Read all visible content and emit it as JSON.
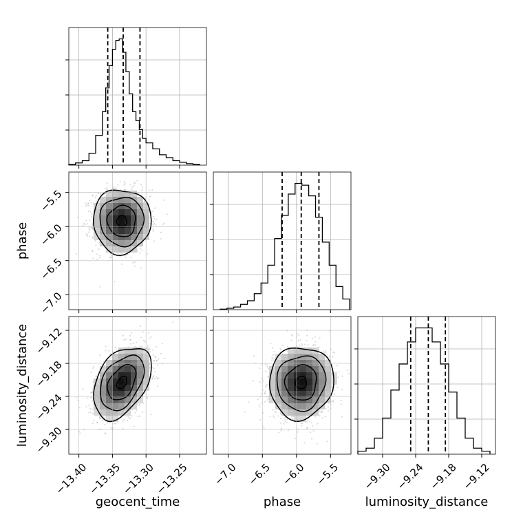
{
  "chart_data": {
    "type": "corner",
    "parameters": [
      {
        "name": "geocent_time",
        "label": "geocent_time",
        "range": [
          -13.415,
          -13.21
        ],
        "ticks": [
          -13.4,
          -13.35,
          -13.3,
          -13.25
        ],
        "tick_labels": [
          "−13.40",
          "−13.35",
          "−13.30",
          "−13.25"
        ],
        "quantiles": [
          -13.357,
          -13.334,
          -13.309
        ]
      },
      {
        "name": "phase",
        "label": "phase",
        "range": [
          -7.22,
          -5.2
        ],
        "ticks": [
          -7.0,
          -6.5,
          -6.0,
          -5.5
        ],
        "tick_labels": [
          "−7.0",
          "−6.5",
          "−6.0",
          "−5.5"
        ],
        "quantiles": [
          -6.21,
          -5.93,
          -5.67
        ]
      },
      {
        "name": "luminosity_distance",
        "label": "luminosity_distance",
        "range": [
          -9.345,
          -9.095
        ],
        "ticks": [
          -9.3,
          -9.24,
          -9.18,
          -9.12
        ],
        "tick_labels": [
          "−9.30",
          "−9.24",
          "−9.18",
          "−9.12"
        ],
        "quantiles": [
          -9.249,
          -9.217,
          -9.186
        ]
      }
    ],
    "histograms": [
      {
        "parameter": "geocent_time",
        "bin_edges": [
          -13.415,
          -13.405,
          -13.395,
          -13.385,
          -13.375,
          -13.365,
          -13.36,
          -13.355,
          -13.35,
          -13.345,
          -13.34,
          -13.335,
          -13.33,
          -13.325,
          -13.32,
          -13.315,
          -13.31,
          -13.305,
          -13.3,
          -13.29,
          -13.28,
          -13.27,
          -13.26,
          -13.25,
          -13.24,
          -13.23,
          -13.22
        ],
        "counts": [
          0.5,
          1.5,
          3,
          8,
          20,
          36,
          52,
          67,
          78,
          84,
          85,
          76,
          63,
          48,
          36,
          30,
          24,
          18,
          15,
          11,
          7,
          5,
          3,
          2,
          1,
          0.5
        ]
      },
      {
        "parameter": "phase",
        "bin_edges": [
          -7.12,
          -7.02,
          -6.92,
          -6.82,
          -6.72,
          -6.62,
          -6.52,
          -6.42,
          -6.32,
          -6.22,
          -6.12,
          -6.02,
          -5.92,
          -5.82,
          -5.72,
          -5.62,
          -5.52,
          -5.42,
          -5.32,
          -5.22
        ],
        "counts": [
          0.3,
          0.8,
          1.5,
          3,
          5,
          9,
          15,
          25,
          40,
          53,
          65,
          71,
          70,
          64,
          52,
          38,
          25,
          13,
          6
        ]
      },
      {
        "parameter": "luminosity_distance",
        "bin_edges": [
          -9.345,
          -9.33,
          -9.315,
          -9.3,
          -9.285,
          -9.27,
          -9.255,
          -9.24,
          -9.225,
          -9.21,
          -9.195,
          -9.18,
          -9.165,
          -9.15,
          -9.135,
          -9.12,
          -9.105
        ],
        "counts": [
          1.5,
          3,
          8,
          18,
          32,
          45,
          56,
          63,
          63,
          56,
          45,
          31,
          18,
          8,
          3,
          1.5
        ]
      }
    ],
    "joint_distributions": [
      {
        "x": "geocent_time",
        "y": "phase",
        "center": [
          -13.336,
          -5.92
        ],
        "sigma": [
          0.021,
          0.23
        ],
        "correlation": 0.0,
        "levels": "0.5, 1.0, 1.5, 2.0 sigma contours with grayscale density and scatter points"
      },
      {
        "x": "geocent_time",
        "y": "luminosity_distance",
        "center": [
          -13.336,
          -9.215
        ],
        "sigma": [
          0.021,
          0.032
        ],
        "correlation": 0.4,
        "levels": "0.5, 1.0, 1.5, 2.0 sigma contours with grayscale density and scatter points"
      },
      {
        "x": "phase",
        "y": "luminosity_distance",
        "center": [
          -5.93,
          -9.215
        ],
        "sigma": [
          0.23,
          0.032
        ],
        "correlation": 0.05,
        "levels": "0.5, 1.0, 1.5, 2.0 sigma contours with grayscale density and scatter points"
      }
    ],
    "grid": true,
    "quantile_lines": "dashed"
  }
}
